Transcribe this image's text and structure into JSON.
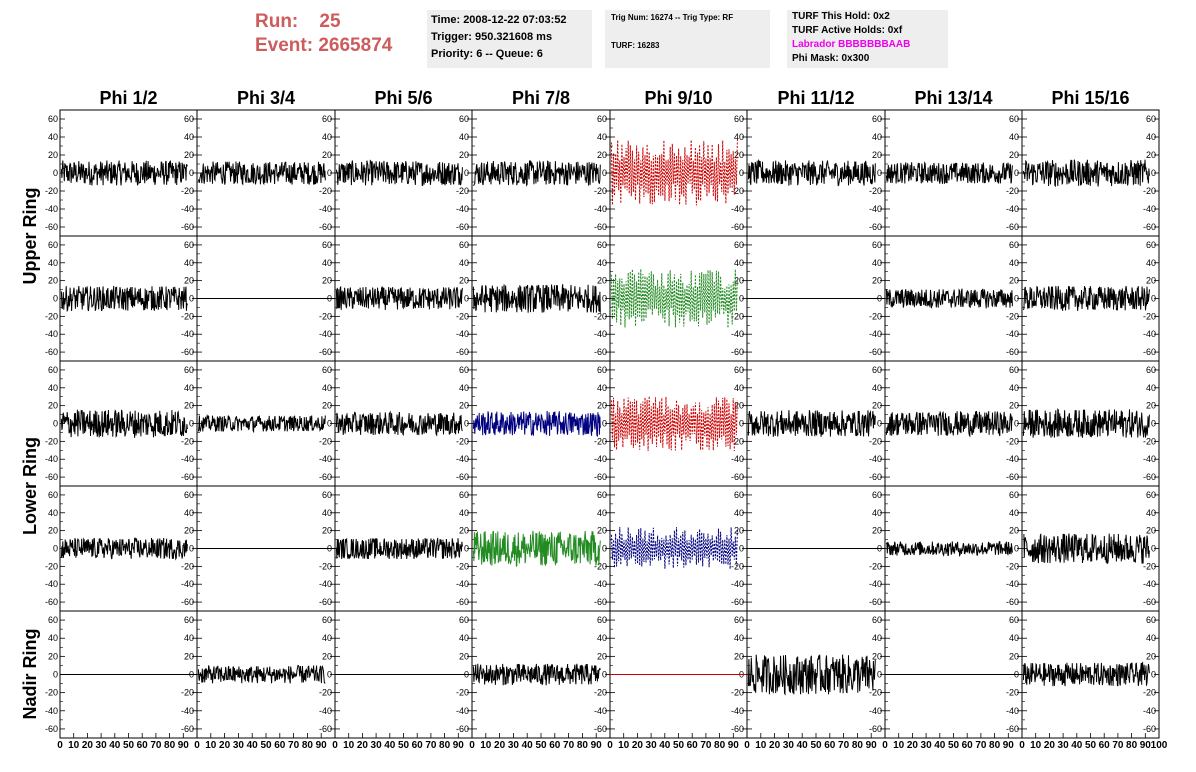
{
  "header": {
    "run_label": "Run:",
    "run_value": "25",
    "event_label": "Event:",
    "event_value": "2665874"
  },
  "info_box_1": {
    "time": "Time: 2008-12-22 07:03:52",
    "trigger": "Trigger: 950.321608 ms",
    "priority": "Priority: 6 -- Queue: 6"
  },
  "info_box_2": {
    "trig": "Trig Num: 16274 -- Trig Type: RF",
    "turf": "TURF: 16283"
  },
  "info_box_3": {
    "this_hold": "TURF This Hold: 0x2",
    "active_holds": "TURF Active Holds: 0xf",
    "labrador": "Labrador BBBBBBBAAB",
    "phi_mask": "Phi Mask: 0x300"
  },
  "colors": {
    "normal": "#000000",
    "red": "#cc0000",
    "green": "#228b22",
    "blue": "#000080"
  },
  "chart_data": {
    "type": "line",
    "columns": [
      "Phi 1/2",
      "Phi 3/4",
      "Phi 5/6",
      "Phi 7/8",
      "Phi 9/10",
      "Phi 11/12",
      "Phi 13/14",
      "Phi 15/16"
    ],
    "ring_labels": [
      "Upper Ring",
      "Lower Ring",
      "Nadir Ring"
    ],
    "y_ticks": [
      60,
      40,
      20,
      0,
      -20,
      -40,
      -60
    ],
    "x_ticks": [
      0,
      10,
      20,
      30,
      40,
      50,
      60,
      70,
      80,
      90,
      100
    ],
    "xlim": [
      0,
      100
    ],
    "ylim": [
      -70,
      70
    ],
    "rows": [
      {
        "styles": [
          "normal",
          "normal",
          "normal",
          "normal",
          "red-dashed",
          "normal",
          "normal",
          "normal"
        ],
        "amplitudes": [
          14,
          13,
          14,
          14,
          34,
          14,
          12,
          15
        ],
        "flat": [
          false,
          false,
          false,
          false,
          false,
          false,
          false,
          false
        ]
      },
      {
        "styles": [
          "normal",
          "flat",
          "normal",
          "normal",
          "green-dashed",
          "flat",
          "normal",
          "normal"
        ],
        "amplitudes": [
          14,
          0,
          13,
          16,
          30,
          0,
          11,
          14
        ],
        "flat": [
          false,
          true,
          false,
          false,
          false,
          true,
          false,
          false
        ]
      },
      {
        "styles": [
          "normal",
          "normal",
          "normal",
          "blue",
          "red-dashed",
          "normal",
          "normal",
          "normal"
        ],
        "amplitudes": [
          16,
          9,
          13,
          14,
          28,
          15,
          14,
          16
        ],
        "flat": [
          false,
          false,
          false,
          false,
          false,
          false,
          false,
          false
        ]
      },
      {
        "styles": [
          "normal",
          "flat",
          "normal",
          "green",
          "blue-dashed",
          "flat",
          "normal",
          "normal"
        ],
        "amplitudes": [
          12,
          0,
          12,
          20,
          22,
          0,
          8,
          17
        ],
        "flat": [
          false,
          true,
          false,
          false,
          false,
          true,
          false,
          false
        ]
      },
      {
        "styles": [
          "flat",
          "normal",
          "flat",
          "normal",
          "red-flat",
          "normal",
          "flat",
          "normal"
        ],
        "amplitudes": [
          0,
          10,
          0,
          12,
          0,
          22,
          0,
          13
        ],
        "flat": [
          true,
          false,
          true,
          false,
          true,
          false,
          true,
          false
        ]
      }
    ]
  }
}
